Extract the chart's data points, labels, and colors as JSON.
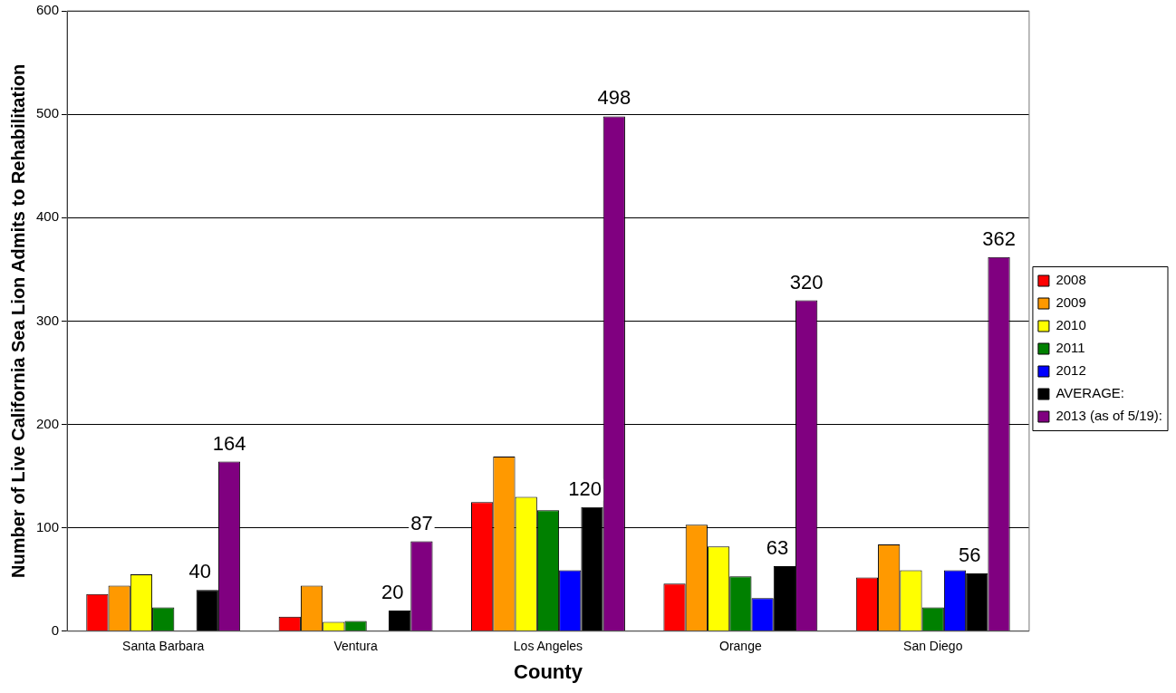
{
  "chart_data": {
    "type": "bar",
    "xlabel": "County",
    "ylabel": "Number of Live California Sea Lion Admits to Rehabilitation",
    "categories": [
      "Santa Barbara",
      "Ventura",
      "Los Angeles",
      "Orange",
      "San Diego"
    ],
    "series": [
      {
        "name": "2008",
        "color": "#ff0000",
        "values": [
          36,
          14,
          125,
          46,
          52
        ]
      },
      {
        "name": "2009",
        "color": "#ff9900",
        "values": [
          44,
          44,
          169,
          103,
          84
        ]
      },
      {
        "name": "2010",
        "color": "#ffff00",
        "values": [
          55,
          9,
          130,
          82,
          59
        ]
      },
      {
        "name": "2011",
        "color": "#008000",
        "values": [
          23,
          10,
          117,
          53,
          23
        ]
      },
      {
        "name": "2012",
        "color": "#0000ff",
        "values": [
          null,
          null,
          59,
          32,
          59
        ]
      },
      {
        "name": "AVERAGE:",
        "color": "#000000",
        "values": [
          40,
          20,
          120,
          63,
          56
        ],
        "value_labels": [
          "40",
          "20",
          "120",
          "63",
          "56"
        ]
      },
      {
        "name": "2013 (as of 5/19):",
        "color": "#800080",
        "values": [
          164,
          87,
          498,
          320,
          362
        ],
        "value_labels": [
          "164",
          "87",
          "498",
          "320",
          "362"
        ]
      }
    ],
    "ylim": [
      0,
      600
    ],
    "yticks": [
      0,
      100,
      200,
      300,
      400,
      500,
      600
    ],
    "grid": "y",
    "legend": "right"
  }
}
